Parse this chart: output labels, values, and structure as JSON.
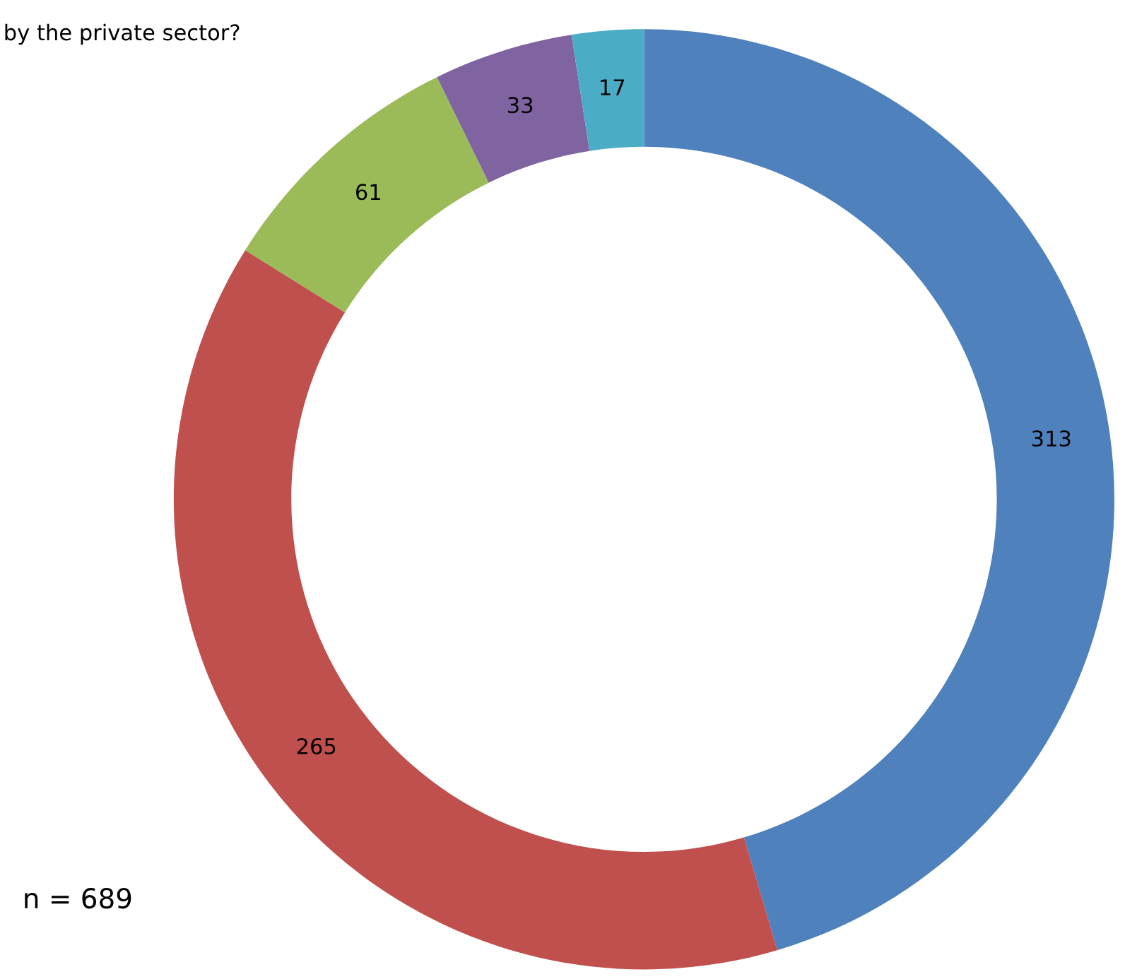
{
  "chart_data": {
    "type": "donut",
    "title": "by the private sector?",
    "categories": [
      null,
      null,
      null,
      null,
      null
    ],
    "values": [
      313,
      265,
      61,
      33,
      17
    ],
    "colors": [
      "#4f81bd",
      "#c0504d",
      "#9bbb59",
      "#8064a2",
      "#4bacc6"
    ],
    "data_labels": true,
    "annotations": [
      "n = 689"
    ]
  }
}
